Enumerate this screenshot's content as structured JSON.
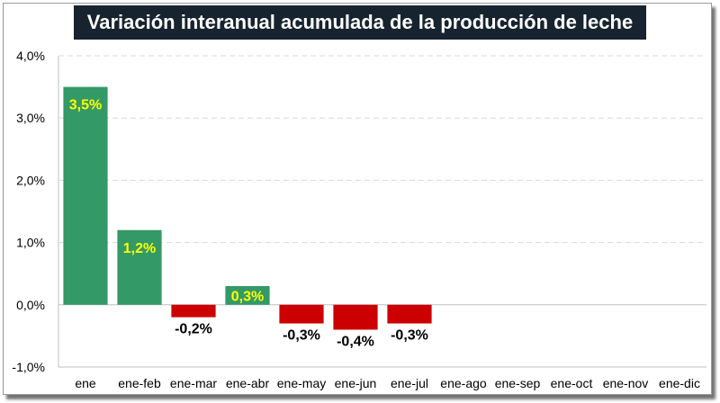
{
  "chart_data": {
    "type": "bar",
    "title": "Variación interanual acumulada de la producción de leche",
    "xlabel": "",
    "ylabel": "",
    "ylim": [
      -1.0,
      4.0
    ],
    "yticks": [
      "-1,0%",
      "0,0%",
      "1,0%",
      "2,0%",
      "3,0%",
      "4,0%"
    ],
    "categories": [
      "ene",
      "ene-feb",
      "ene-mar",
      "ene-abr",
      "ene-may",
      "ene-jun",
      "ene-jul",
      "ene-ago",
      "ene-sep",
      "ene-oct",
      "ene-nov",
      "ene-dic"
    ],
    "values": [
      3.5,
      1.2,
      -0.2,
      0.3,
      -0.3,
      -0.4,
      -0.3,
      null,
      null,
      null,
      null,
      null
    ],
    "data_labels": [
      "3,5%",
      "1,2%",
      "-0,2%",
      "0,3%",
      "-0,3%",
      "-0,4%",
      "-0,3%",
      "",
      "",
      "",
      "",
      ""
    ],
    "grid": true,
    "colors": {
      "positive": "#339966",
      "negative": "#cc0000",
      "positive_label": "#ffff00",
      "negative_label": "#000000",
      "title_bg": "#17232e",
      "title_text": "#ffffff"
    }
  }
}
